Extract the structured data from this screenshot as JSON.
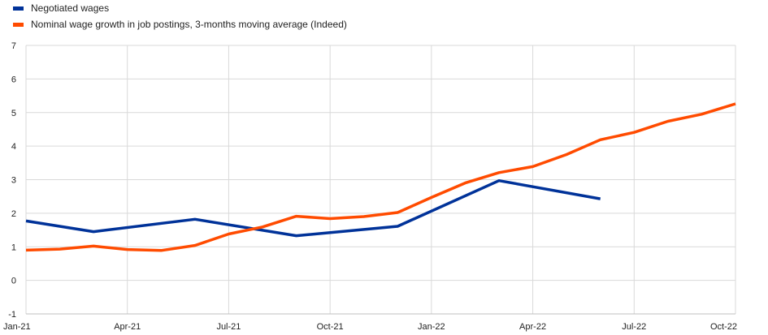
{
  "chart_data": {
    "type": "line",
    "title": "",
    "xlabel": "",
    "ylabel": "",
    "ylim": [
      -1,
      7
    ],
    "yticks": [
      "-1",
      "0",
      "1",
      "2",
      "3",
      "4",
      "5",
      "6",
      "7"
    ],
    "xlim": [
      0,
      21
    ],
    "xticks": [
      {
        "label": "Jan-21",
        "x": 0
      },
      {
        "label": "Apr-21",
        "x": 3
      },
      {
        "label": "Jul-21",
        "x": 6
      },
      {
        "label": "Oct-21",
        "x": 9
      },
      {
        "label": "Jan-22",
        "x": 12
      },
      {
        "label": "Apr-22",
        "x": 15
      },
      {
        "label": "Jul-22",
        "x": 18
      },
      {
        "label": "Oct-22",
        "x": 21
      }
    ],
    "grid": true,
    "legend_position": "top-left",
    "series": [
      {
        "name": "Negotiated wages",
        "color": "#003299",
        "points": [
          [
            0,
            1.77
          ],
          [
            2,
            1.45
          ],
          [
            5,
            1.82
          ],
          [
            8,
            1.33
          ],
          [
            11,
            1.61
          ],
          [
            14,
            2.97
          ],
          [
            17,
            2.43
          ]
        ]
      },
      {
        "name": "Nominal wage growth in job postings, 3-months moving average (Indeed)",
        "color": "#ff4b00",
        "points": [
          [
            0,
            0.9
          ],
          [
            1,
            0.93
          ],
          [
            2,
            1.02
          ],
          [
            3,
            0.92
          ],
          [
            4,
            0.89
          ],
          [
            5,
            1.04
          ],
          [
            6,
            1.38
          ],
          [
            7,
            1.59
          ],
          [
            8,
            1.91
          ],
          [
            9,
            1.84
          ],
          [
            10,
            1.9
          ],
          [
            11,
            2.02
          ],
          [
            12,
            2.47
          ],
          [
            13,
            2.9
          ],
          [
            14,
            3.21
          ],
          [
            15,
            3.39
          ],
          [
            16,
            3.75
          ],
          [
            17,
            4.19
          ],
          [
            18,
            4.41
          ],
          [
            19,
            4.74
          ],
          [
            20,
            4.95
          ],
          [
            21,
            5.26
          ]
        ]
      }
    ]
  }
}
